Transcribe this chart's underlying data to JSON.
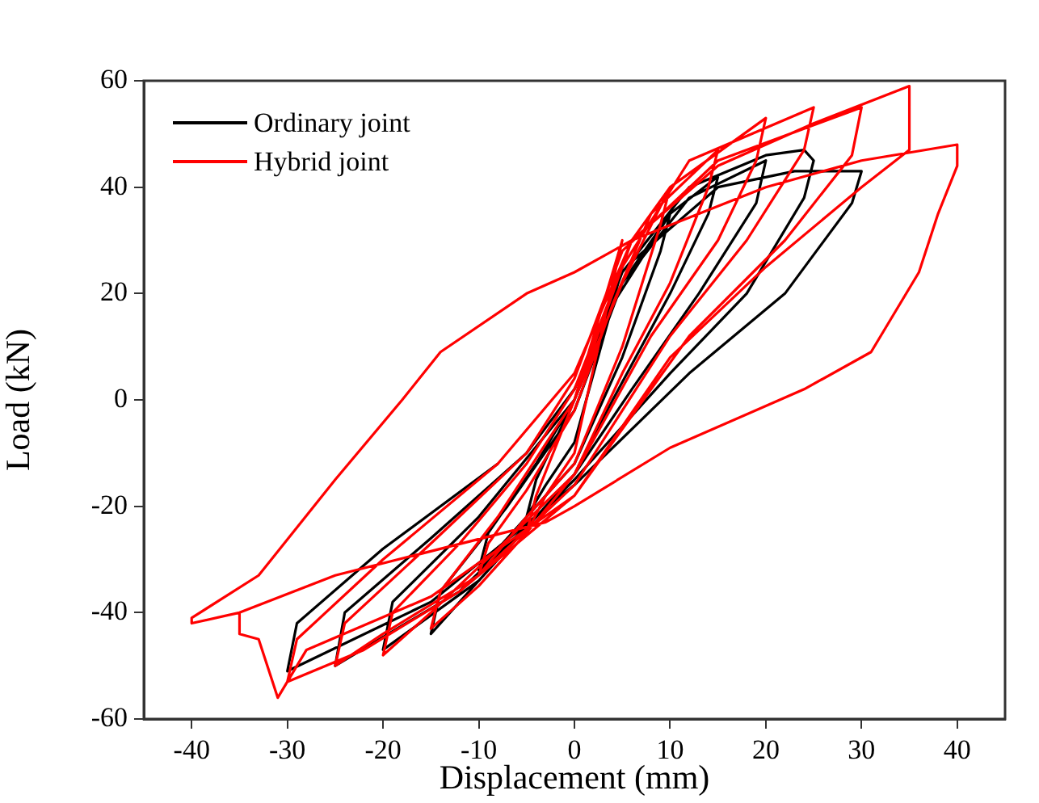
{
  "chart_data": {
    "type": "line",
    "xlabel": "Displacement (mm)",
    "ylabel": "Load (kN)",
    "xlim": [
      -45,
      45
    ],
    "xticks": [
      -40,
      -30,
      -20,
      -10,
      0,
      10,
      20,
      30,
      40
    ],
    "ylim": [
      -60,
      60
    ],
    "yticks": [
      -60,
      -40,
      -20,
      0,
      20,
      40,
      60
    ],
    "legend": "top left",
    "marker": "none",
    "line_style": "solid",
    "series": [
      {
        "name": "Ordinary joint",
        "color": "#000000",
        "x": [
          0,
          3,
          5,
          4,
          0,
          -3,
          -5,
          -4,
          0,
          4,
          10,
          9,
          5,
          0,
          -5,
          -10,
          -9,
          -4,
          0,
          5,
          10,
          15,
          14,
          10,
          4,
          0,
          -8,
          -15,
          -14,
          -7,
          0,
          5,
          12,
          20,
          19,
          13,
          6,
          0,
          -10,
          -20,
          -19,
          -10,
          0,
          5,
          12,
          20,
          24,
          25,
          24,
          18,
          10,
          0,
          -12,
          -25,
          -24,
          -15,
          -5,
          0,
          6,
          15,
          23,
          30,
          29,
          22,
          12,
          0,
          -15,
          -30,
          -29,
          -20,
          -8
        ],
        "values": [
          0,
          15,
          25,
          18,
          -8,
          -16,
          -22,
          -15,
          0,
          18,
          35,
          28,
          8,
          -12,
          -22,
          -32,
          -25,
          -12,
          0,
          22,
          35,
          42,
          35,
          20,
          0,
          -14,
          -30,
          -44,
          -36,
          -20,
          -2,
          22,
          38,
          45,
          37,
          20,
          2,
          -14,
          -34,
          -47,
          -38,
          -22,
          0,
          24,
          40,
          46,
          47,
          45,
          38,
          20,
          5,
          -15,
          -36,
          -50,
          -40,
          -26,
          -10,
          2,
          26,
          40,
          43,
          43,
          37,
          20,
          5,
          -16,
          -38,
          -51,
          -42,
          -28,
          -12
        ]
      },
      {
        "name": "Hybrid joint",
        "color": "#ff0000",
        "x": [
          0,
          3,
          5,
          4,
          0,
          -3,
          -5,
          -4,
          0,
          3,
          6,
          10,
          9,
          5,
          0,
          -5,
          -10,
          -9,
          -5,
          0,
          4,
          8,
          15,
          14,
          10,
          5,
          0,
          -5,
          -10,
          -15,
          -14,
          -8,
          0,
          5,
          10,
          20,
          19,
          15,
          8,
          0,
          -8,
          -15,
          -20,
          -19,
          -12,
          -5,
          0,
          5,
          12,
          25,
          24,
          18,
          10,
          0,
          -10,
          -20,
          -25,
          -24,
          -15,
          -5,
          0,
          5,
          15,
          30,
          29,
          22,
          12,
          0,
          -12,
          -22,
          -30,
          -29,
          -20,
          -8,
          0,
          6,
          15,
          25,
          35,
          35,
          30,
          20,
          10,
          0,
          -15,
          -28,
          -31,
          -33,
          -35,
          -35,
          -40,
          -40,
          -33,
          -25,
          -18,
          -14,
          -5,
          0,
          6,
          20,
          30,
          40,
          40,
          38,
          36,
          31,
          24,
          10,
          0,
          -2,
          -3,
          -25,
          -35
        ],
        "values": [
          0,
          18,
          30,
          22,
          -10,
          -18,
          -25,
          -18,
          0,
          15,
          30,
          40,
          33,
          10,
          -12,
          -22,
          -33,
          -27,
          -17,
          -2,
          18,
          35,
          47,
          40,
          22,
          5,
          -14,
          -25,
          -35,
          -43,
          -36,
          -22,
          0,
          22,
          40,
          53,
          45,
          30,
          12,
          -14,
          -28,
          -40,
          -48,
          -40,
          -27,
          -12,
          2,
          25,
          45,
          55,
          47,
          30,
          12,
          -16,
          -33,
          -44,
          -50,
          -42,
          -27,
          -10,
          4,
          28,
          45,
          55,
          46,
          30,
          12,
          -18,
          -36,
          -47,
          -53,
          -45,
          -30,
          -12,
          5,
          30,
          44,
          52,
          59,
          47,
          40,
          25,
          8,
          -18,
          -37,
          -47,
          -56,
          -45,
          -44,
          -40,
          -42,
          -41,
          -33,
          -15,
          0,
          9,
          20,
          24,
          30,
          40,
          45,
          48,
          44,
          35,
          24,
          9,
          2,
          -9,
          -20,
          -22,
          -23,
          -33,
          -40
        ]
      }
    ]
  }
}
